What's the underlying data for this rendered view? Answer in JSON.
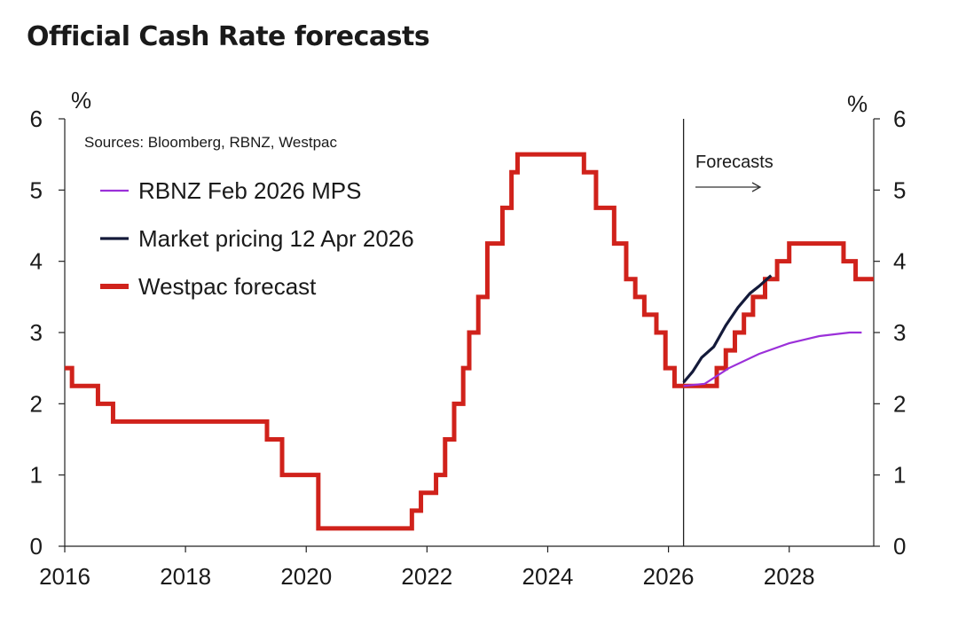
{
  "chart_data": {
    "type": "line",
    "title": "Official Cash Rate forecasts",
    "source": "Sources: Bloomberg, RBNZ, Westpac",
    "left_unit": "%",
    "right_unit": "%",
    "ylim": [
      0,
      6
    ],
    "xlim": [
      2016,
      2029.4
    ],
    "y_ticks": [
      0,
      1,
      2,
      3,
      4,
      5,
      6
    ],
    "y_tick_labels": [
      "0",
      "1",
      "2",
      "3",
      "4",
      "5",
      "6"
    ],
    "x_ticks": [
      2016,
      2018,
      2020,
      2022,
      2024,
      2026,
      2028
    ],
    "x_tick_labels": [
      "2016",
      "2018",
      "2020",
      "2022",
      "2024",
      "2026",
      "2028"
    ],
    "forecast_start": 2026.25,
    "annotation": "Forecasts",
    "series": [
      {
        "name": "RBNZ Feb 2026 MPS",
        "color": "#9b30d9",
        "style": "line",
        "points": [
          [
            2026.25,
            2.25
          ],
          [
            2026.6,
            2.28
          ],
          [
            2027.0,
            2.5
          ],
          [
            2027.5,
            2.7
          ],
          [
            2028.0,
            2.85
          ],
          [
            2028.5,
            2.95
          ],
          [
            2029.0,
            3.0
          ],
          [
            2029.2,
            3.0
          ]
        ]
      },
      {
        "name": "Market pricing 12 Apr 2026",
        "color": "#141a3a",
        "style": "line",
        "points": [
          [
            2026.25,
            2.3
          ],
          [
            2026.4,
            2.45
          ],
          [
            2026.55,
            2.65
          ],
          [
            2026.75,
            2.8
          ],
          [
            2026.95,
            3.1
          ],
          [
            2027.15,
            3.35
          ],
          [
            2027.35,
            3.55
          ],
          [
            2027.5,
            3.65
          ],
          [
            2027.7,
            3.8
          ]
        ]
      },
      {
        "name": "Westpac forecast",
        "color": "#d0221b",
        "style": "step",
        "points": [
          [
            2016.0,
            2.5
          ],
          [
            2016.12,
            2.25
          ],
          [
            2016.55,
            2.0
          ],
          [
            2016.8,
            1.75
          ],
          [
            2019.35,
            1.5
          ],
          [
            2019.6,
            1.0
          ],
          [
            2020.2,
            0.25
          ],
          [
            2021.75,
            0.5
          ],
          [
            2021.9,
            0.75
          ],
          [
            2022.15,
            1.0
          ],
          [
            2022.3,
            1.5
          ],
          [
            2022.45,
            2.0
          ],
          [
            2022.6,
            2.5
          ],
          [
            2022.7,
            3.0
          ],
          [
            2022.85,
            3.5
          ],
          [
            2023.0,
            4.25
          ],
          [
            2023.25,
            4.75
          ],
          [
            2023.4,
            5.25
          ],
          [
            2023.5,
            5.5
          ],
          [
            2024.6,
            5.25
          ],
          [
            2024.8,
            4.75
          ],
          [
            2025.1,
            4.25
          ],
          [
            2025.3,
            3.75
          ],
          [
            2025.45,
            3.5
          ],
          [
            2025.6,
            3.25
          ],
          [
            2025.8,
            3.0
          ],
          [
            2025.95,
            2.5
          ],
          [
            2026.1,
            2.25
          ],
          [
            2026.8,
            2.5
          ],
          [
            2026.95,
            2.75
          ],
          [
            2027.1,
            3.0
          ],
          [
            2027.25,
            3.25
          ],
          [
            2027.4,
            3.5
          ],
          [
            2027.6,
            3.75
          ],
          [
            2027.8,
            4.0
          ],
          [
            2028.0,
            4.25
          ],
          [
            2028.9,
            4.0
          ],
          [
            2029.1,
            3.75
          ],
          [
            2029.4,
            3.75
          ]
        ]
      }
    ]
  }
}
